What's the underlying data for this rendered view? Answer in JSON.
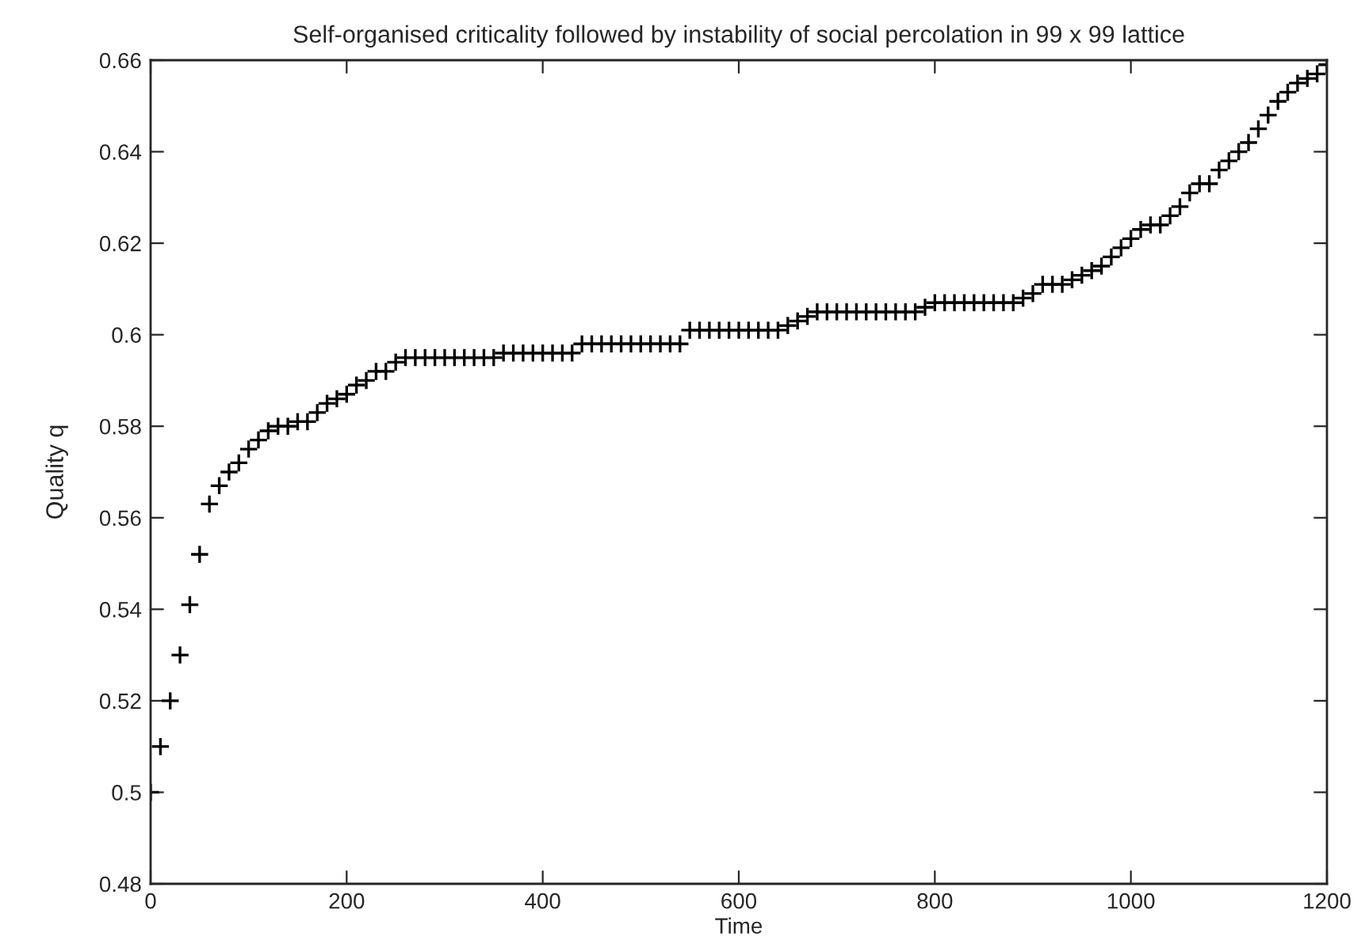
{
  "chart_data": {
    "type": "scatter",
    "title": "Self-organised criticality followed by instability of social percolation in 99 x 99 lattice",
    "xlabel": "Time",
    "ylabel": "Quality q",
    "x": [
      0,
      10,
      20,
      30,
      40,
      50,
      60,
      70,
      80,
      90,
      100,
      110,
      120,
      130,
      140,
      150,
      160,
      170,
      180,
      190,
      200,
      210,
      220,
      230,
      240,
      250,
      260,
      270,
      280,
      290,
      300,
      310,
      320,
      330,
      340,
      350,
      360,
      370,
      380,
      390,
      400,
      410,
      420,
      430,
      440,
      450,
      460,
      470,
      480,
      490,
      500,
      510,
      520,
      530,
      540,
      550,
      560,
      570,
      580,
      590,
      600,
      610,
      620,
      630,
      640,
      650,
      660,
      670,
      680,
      690,
      700,
      710,
      720,
      730,
      740,
      750,
      760,
      770,
      780,
      790,
      800,
      810,
      820,
      830,
      840,
      850,
      860,
      870,
      880,
      890,
      900,
      910,
      920,
      930,
      940,
      950,
      960,
      970,
      980,
      990,
      1000,
      1010,
      1020,
      1030,
      1040,
      1050,
      1060,
      1070,
      1080,
      1090,
      1100,
      1110,
      1120,
      1130,
      1140,
      1150,
      1160,
      1170,
      1180,
      1190,
      1200
    ],
    "series": [
      {
        "color": "#000000",
        "values": [
          0.5,
          0.51,
          0.52,
          0.53,
          0.541,
          0.552,
          0.563,
          0.567,
          0.57,
          0.572,
          0.575,
          0.577,
          0.579,
          0.58,
          0.58,
          0.581,
          0.581,
          0.583,
          0.585,
          0.586,
          0.587,
          0.589,
          0.59,
          0.592,
          0.592,
          0.594,
          0.595,
          0.595,
          0.595,
          0.595,
          0.595,
          0.595,
          0.595,
          0.595,
          0.595,
          0.595,
          0.596,
          0.596,
          0.596,
          0.596,
          0.596,
          0.596,
          0.596,
          0.596,
          0.598,
          0.598,
          0.598,
          0.598,
          0.598,
          0.598,
          0.598,
          0.598,
          0.598,
          0.598,
          0.598,
          0.601,
          0.601,
          0.601,
          0.601,
          0.601,
          0.601,
          0.601,
          0.601,
          0.601,
          0.601,
          0.602,
          0.603,
          0.604,
          0.605,
          0.605,
          0.605,
          0.605,
          0.605,
          0.605,
          0.605,
          0.605,
          0.605,
          0.605,
          0.605,
          0.606,
          0.607,
          0.607,
          0.607,
          0.607,
          0.607,
          0.607,
          0.607,
          0.607,
          0.607,
          0.608,
          0.609,
          0.611,
          0.611,
          0.611,
          0.612,
          0.613,
          0.614,
          0.615,
          0.617,
          0.619,
          0.621,
          0.623,
          0.624,
          0.624,
          0.626,
          0.628,
          0.631,
          0.633,
          0.633,
          0.636,
          0.638,
          0.64,
          0.642,
          0.645,
          0.648,
          0.651,
          0.653,
          0.655,
          0.656,
          0.657,
          0.659
        ]
      }
    ],
    "marker": "cross",
    "grid": false,
    "xlim": [
      0,
      1200
    ],
    "xticks": [
      0,
      200,
      400,
      600,
      800,
      1000,
      1200
    ],
    "ylim": [
      0.48,
      0.66
    ],
    "yticks": [
      0.48,
      0.5,
      0.52,
      0.54,
      0.56,
      0.58,
      0.6,
      0.62,
      0.64,
      0.66
    ]
  }
}
